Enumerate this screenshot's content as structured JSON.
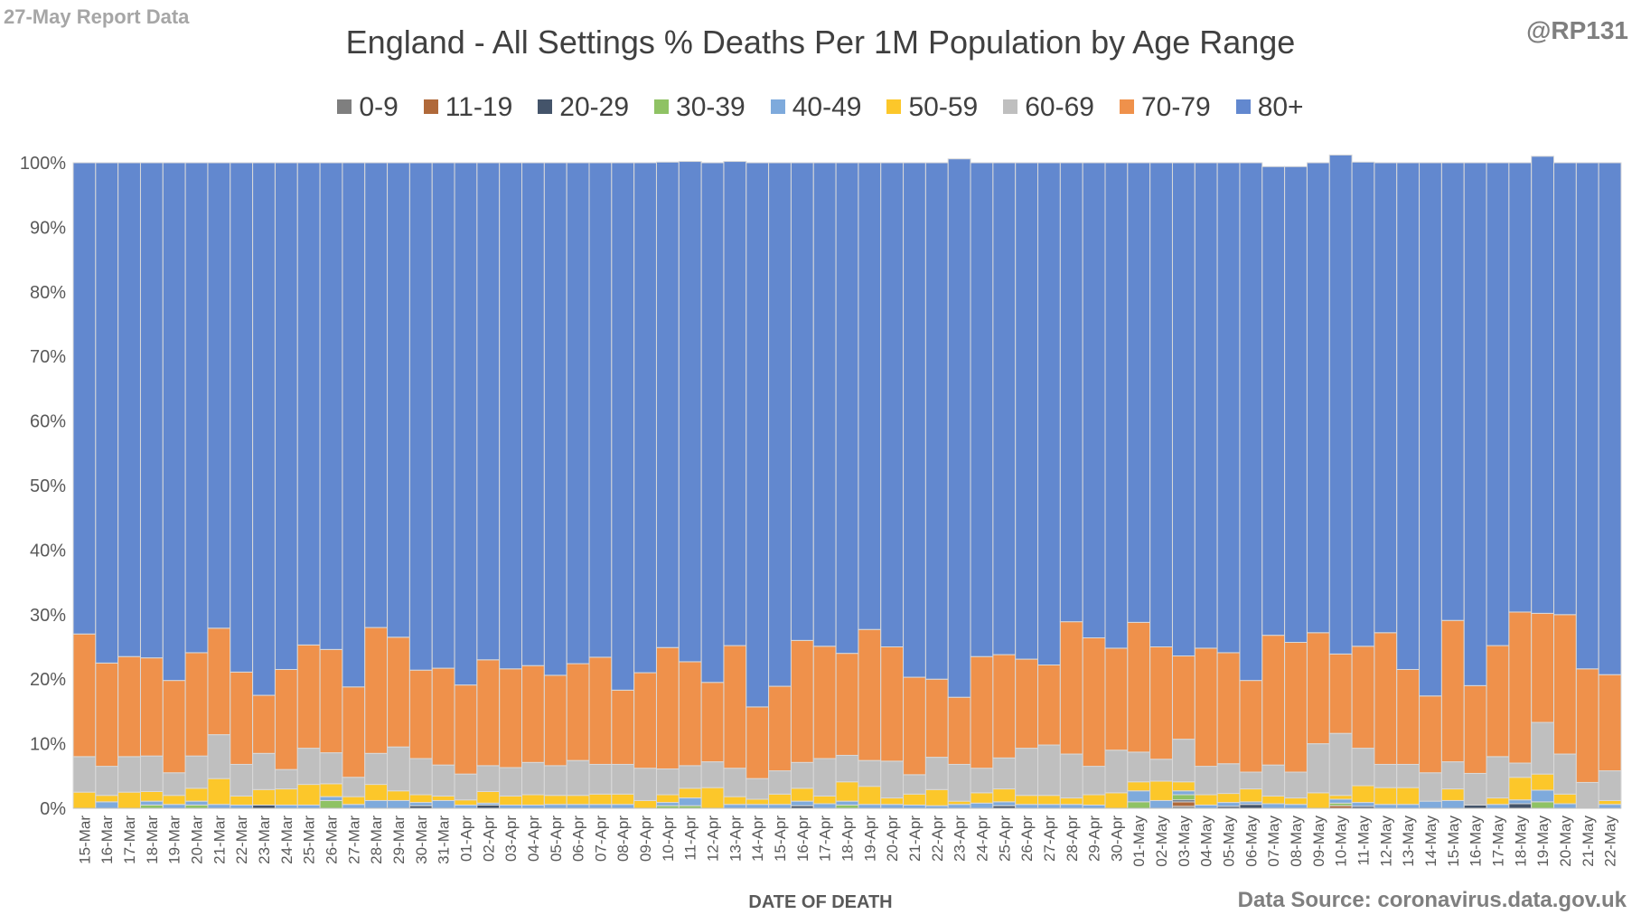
{
  "header": {
    "report_label": "27-May Report Data",
    "author_handle": "@RP131",
    "source_text": "Data Source: coronavirus.data.gov.uk"
  },
  "chart_data": {
    "type": "bar",
    "stacking": "percent",
    "title": "England - All Settings % Deaths Per 1M Population by Age Range",
    "xlabel": "DATE OF DEATH",
    "ylabel": "",
    "ylim": [
      0,
      100
    ],
    "yticks": [
      "0%",
      "10%",
      "20%",
      "30%",
      "40%",
      "50%",
      "60%",
      "70%",
      "80%",
      "90%",
      "100%"
    ],
    "grid": false,
    "legend_position": "top",
    "categories": [
      "15-Mar",
      "16-Mar",
      "17-Mar",
      "18-Mar",
      "19-Mar",
      "20-Mar",
      "21-Mar",
      "22-Mar",
      "23-Mar",
      "24-Mar",
      "25-Mar",
      "26-Mar",
      "27-Mar",
      "28-Mar",
      "29-Mar",
      "30-Mar",
      "31-Mar",
      "01-Apr",
      "02-Apr",
      "03-Apr",
      "04-Apr",
      "05-Apr",
      "06-Apr",
      "07-Apr",
      "08-Apr",
      "09-Apr",
      "10-Apr",
      "11-Apr",
      "12-Apr",
      "13-Apr",
      "14-Apr",
      "15-Apr",
      "16-Apr",
      "17-Apr",
      "18-Apr",
      "19-Apr",
      "20-Apr",
      "21-Apr",
      "22-Apr",
      "23-Apr",
      "24-Apr",
      "25-Apr",
      "26-Apr",
      "27-Apr",
      "28-Apr",
      "29-Apr",
      "30-Apr",
      "01-May",
      "02-May",
      "03-May",
      "04-May",
      "05-May",
      "06-May",
      "07-May",
      "08-May",
      "09-May",
      "10-May",
      "11-May",
      "12-May",
      "13-May",
      "14-May",
      "15-May",
      "16-May",
      "17-May",
      "18-May",
      "19-May",
      "20-May",
      "21-May",
      "22-May"
    ],
    "series": [
      {
        "name": "0-9",
        "color": "#7f7f7f",
        "values": [
          0,
          0,
          0,
          0,
          0,
          0,
          0,
          0,
          0,
          0,
          0,
          0,
          0,
          0,
          0,
          0,
          0,
          0,
          0,
          0,
          0,
          0,
          0,
          0,
          0,
          0,
          0,
          0,
          0,
          0,
          0,
          0,
          0,
          0,
          0,
          0,
          0,
          0,
          0,
          0,
          0,
          0,
          0,
          0,
          0,
          0,
          0,
          0,
          0,
          0.3,
          0,
          0,
          0,
          0,
          0,
          0,
          0,
          0,
          0,
          0,
          0,
          0,
          0,
          0,
          0,
          0,
          0,
          0,
          0
        ]
      },
      {
        "name": "11-19",
        "color": "#b0693a",
        "values": [
          0,
          0,
          0,
          0,
          0,
          0,
          0,
          0,
          0,
          0,
          0,
          0,
          0,
          0,
          0,
          0,
          0,
          0,
          0,
          0,
          0,
          0,
          0,
          0,
          0,
          0,
          0,
          0,
          0,
          0,
          0,
          0,
          0,
          0,
          0,
          0,
          0,
          0,
          0,
          0,
          0,
          0,
          0,
          0,
          0,
          0,
          0,
          0,
          0,
          0.7,
          0,
          0,
          0,
          0,
          0,
          0,
          0.4,
          0,
          0,
          0,
          0,
          0,
          0,
          0,
          0,
          0,
          0,
          0,
          0
        ]
      },
      {
        "name": "20-29",
        "color": "#44546a",
        "values": [
          0,
          0,
          0,
          0,
          0,
          0,
          0,
          0,
          0.5,
          0,
          0,
          0,
          0,
          0,
          0,
          0.4,
          0,
          0,
          0.5,
          0,
          0,
          0,
          0,
          0,
          0,
          0,
          0,
          0,
          0,
          0,
          0,
          0,
          0.4,
          0,
          0,
          0,
          0,
          0,
          0,
          0,
          0,
          0.4,
          0,
          0,
          0,
          0,
          0,
          0,
          0,
          0.3,
          0,
          0.3,
          0.6,
          0,
          0,
          0,
          0,
          0.3,
          0,
          0,
          0,
          0,
          0.5,
          0,
          0.7,
          0,
          0,
          0,
          0
        ]
      },
      {
        "name": "30-39",
        "color": "#8fc264",
        "values": [
          0,
          0,
          0,
          0.5,
          0,
          0.5,
          0,
          0,
          0,
          0,
          0,
          1.2,
          0,
          0,
          0,
          0,
          0,
          0,
          0,
          0,
          0,
          0,
          0,
          0,
          0,
          0,
          0.4,
          0.4,
          0,
          0,
          0,
          0,
          0,
          0,
          0.5,
          0,
          0,
          0,
          0,
          0,
          0,
          0,
          0,
          0,
          0,
          0,
          0,
          1.0,
          0,
          0.8,
          0,
          0,
          0,
          0,
          0,
          0,
          0.4,
          0,
          0,
          0,
          0,
          0,
          0,
          0,
          0,
          1.0,
          0,
          0,
          0
        ]
      },
      {
        "name": "40-49",
        "color": "#7eaadc",
        "values": [
          0,
          1.0,
          0,
          0.6,
          0.6,
          0.6,
          0.6,
          0.5,
          0,
          0.5,
          0.5,
          0.6,
          0.6,
          1.2,
          1.2,
          0.5,
          1.2,
          0.5,
          0.3,
          0.5,
          0.5,
          0.6,
          0.6,
          0.6,
          0.6,
          0,
          0.5,
          1.2,
          0,
          0.6,
          0.6,
          0.6,
          0.7,
          0.7,
          0.6,
          0.6,
          0.6,
          0.5,
          0.4,
          0.6,
          0.8,
          0.6,
          0.6,
          0.6,
          0.6,
          0.5,
          0,
          1.7,
          1.2,
          0.6,
          0.5,
          0.6,
          0.4,
          0.7,
          0.6,
          0,
          0.6,
          0.6,
          0.6,
          0.6,
          1.1,
          1.2,
          0,
          0.6,
          0.6,
          1.8,
          0.7,
          0,
          0.6
        ]
      },
      {
        "name": "50-59",
        "color": "#fcc72a",
        "values": [
          2.5,
          1.0,
          2.5,
          1.5,
          1.4,
          2.0,
          4.0,
          1.4,
          2.4,
          2.5,
          3.2,
          2.0,
          1.2,
          2.5,
          1.5,
          1.2,
          0.7,
          0.8,
          1.8,
          1.4,
          1.6,
          1.4,
          1.4,
          1.6,
          1.6,
          1.2,
          1.2,
          1.5,
          3.2,
          1.2,
          0.8,
          1.6,
          2.0,
          1.2,
          3.0,
          2.8,
          1.0,
          1.7,
          2.5,
          0.5,
          1.6,
          2.0,
          1.4,
          1.4,
          1.0,
          1.6,
          2.4,
          1.4,
          3.0,
          1.4,
          1.6,
          1.4,
          2.0,
          1.2,
          1.0,
          2.4,
          0.6,
          2.6,
          2.6,
          2.6,
          0,
          1.8,
          0,
          1.0,
          3.5,
          2.5,
          1.5,
          0,
          0.6
        ]
      },
      {
        "name": "60-69",
        "color": "#bfbfbf",
        "values": [
          5.5,
          4.5,
          5.5,
          5.5,
          3.5,
          5.0,
          6.8,
          4.9,
          5.6,
          3.0,
          5.6,
          4.8,
          3.0,
          4.8,
          6.8,
          5.6,
          4.8,
          4.0,
          4.0,
          4.4,
          5.0,
          4.6,
          5.4,
          4.6,
          4.6,
          5.0,
          4.0,
          3.5,
          4.0,
          4.4,
          3.2,
          3.6,
          4.0,
          5.8,
          4.1,
          4.0,
          5.7,
          3.0,
          5.0,
          5.7,
          3.8,
          4.8,
          7.3,
          7.8,
          6.8,
          4.4,
          6.6,
          4.6,
          3.4,
          6.6,
          4.4,
          4.6,
          2.6,
          4.8,
          4.0,
          7.6,
          9.6,
          5.8,
          3.6,
          3.6,
          4.4,
          4.2,
          4.9,
          6.4,
          2.2,
          8.0,
          6.2,
          4.0,
          4.6
        ]
      },
      {
        "name": "70-79",
        "color": "#ef914b",
        "values": [
          19.0,
          16.0,
          15.5,
          15.2,
          14.3,
          16.0,
          16.5,
          14.3,
          9.0,
          15.5,
          16.0,
          16.0,
          14.0,
          19.5,
          17.0,
          13.7,
          15.0,
          13.8,
          16.4,
          15.3,
          15.0,
          14.0,
          15.0,
          16.6,
          11.5,
          14.8,
          18.8,
          16.1,
          12.3,
          19.0,
          11.1,
          13.1,
          18.9,
          17.4,
          15.8,
          20.3,
          17.7,
          15.1,
          12.1,
          10.4,
          17.3,
          16.0,
          13.8,
          12.4,
          20.5,
          19.9,
          15.8,
          20.1,
          17.4,
          12.9,
          18.3,
          17.2,
          14.2,
          20.1,
          20.1,
          17.2,
          12.3,
          15.8,
          20.4,
          14.7,
          11.9,
          21.9,
          13.6,
          17.2,
          23.4,
          16.9,
          21.6,
          17.6,
          14.9
        ]
      },
      {
        "name": "80+",
        "color": "#6288cf",
        "values": [
          73.0,
          77.5,
          76.5,
          76.7,
          80.2,
          75.9,
          72.1,
          78.9,
          82.5,
          78.5,
          74.7,
          75.4,
          81.2,
          72.0,
          73.5,
          78.6,
          78.3,
          80.9,
          77.0,
          78.4,
          77.9,
          79.4,
          77.6,
          76.6,
          81.7,
          79.0,
          75.2,
          77.5,
          80.5,
          75.0,
          84.3,
          81.1,
          74.0,
          74.9,
          76.0,
          72.3,
          75.0,
          79.7,
          80.0,
          83.4,
          76.5,
          76.2,
          76.9,
          77.8,
          71.1,
          73.6,
          75.2,
          71.2,
          75.0,
          76.4,
          75.2,
          75.9,
          80.2,
          72.6,
          73.7,
          72.8,
          77.3,
          75.0,
          72.8,
          78.5,
          82.6,
          70.9,
          81.0,
          74.8,
          69.6,
          70.8,
          70.0,
          78.4,
          79.3
        ]
      }
    ]
  }
}
